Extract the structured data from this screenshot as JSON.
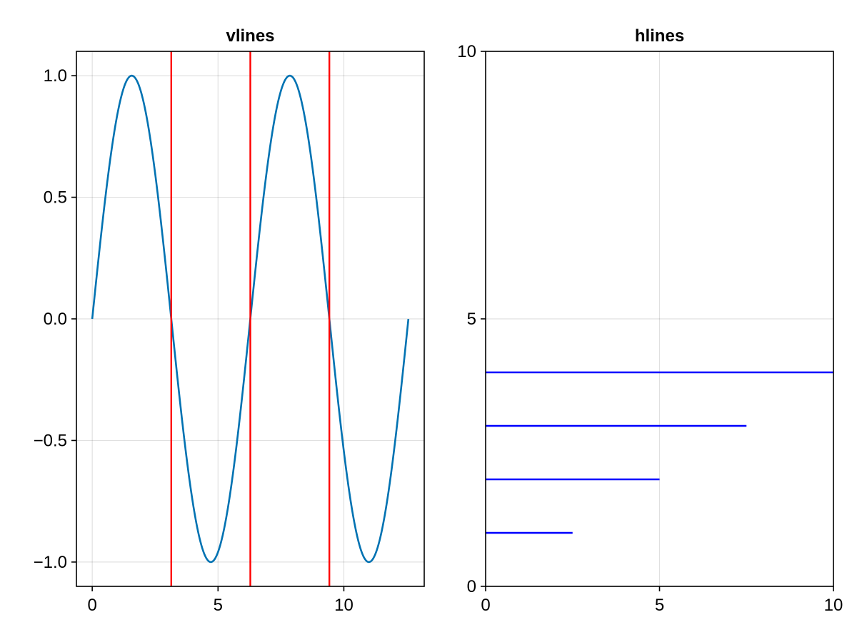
{
  "chart_data": [
    {
      "type": "line",
      "title": "vlines",
      "xlabel": "",
      "ylabel": "",
      "xlim": [
        -0.6283,
        13.1947
      ],
      "ylim": [
        -1.1,
        1.1
      ],
      "xticks": [
        0,
        5,
        10
      ],
      "xtick_labels": [
        "0",
        "5",
        "10"
      ],
      "yticks": [
        -1.0,
        -0.5,
        0.0,
        0.5,
        1.0
      ],
      "ytick_labels": [
        "−1.0",
        "−0.5",
        "0.0",
        "0.5",
        "1.0"
      ],
      "grid": true,
      "series": [
        {
          "kind": "function",
          "function": "sin(x)",
          "x_range": [
            0,
            12.566
          ],
          "color": "#0072b2"
        }
      ],
      "vlines": {
        "x": [
          3.1416,
          6.2832,
          9.4248
        ],
        "color": "#ff0000"
      }
    },
    {
      "type": "line",
      "title": "hlines",
      "xlabel": "",
      "ylabel": "",
      "xlim": [
        0,
        10
      ],
      "ylim": [
        0,
        10
      ],
      "xticks": [
        0,
        5,
        10
      ],
      "xtick_labels": [
        "0",
        "5",
        "10"
      ],
      "yticks": [
        0,
        5,
        10
      ],
      "ytick_labels": [
        "0",
        "5",
        "10"
      ],
      "grid": true,
      "hlines": {
        "y": [
          1,
          2,
          3,
          4
        ],
        "xmin": [
          0,
          0,
          0,
          0
        ],
        "xmax": [
          2.5,
          5,
          7.5,
          10
        ],
        "color": "#0000ff"
      }
    }
  ]
}
